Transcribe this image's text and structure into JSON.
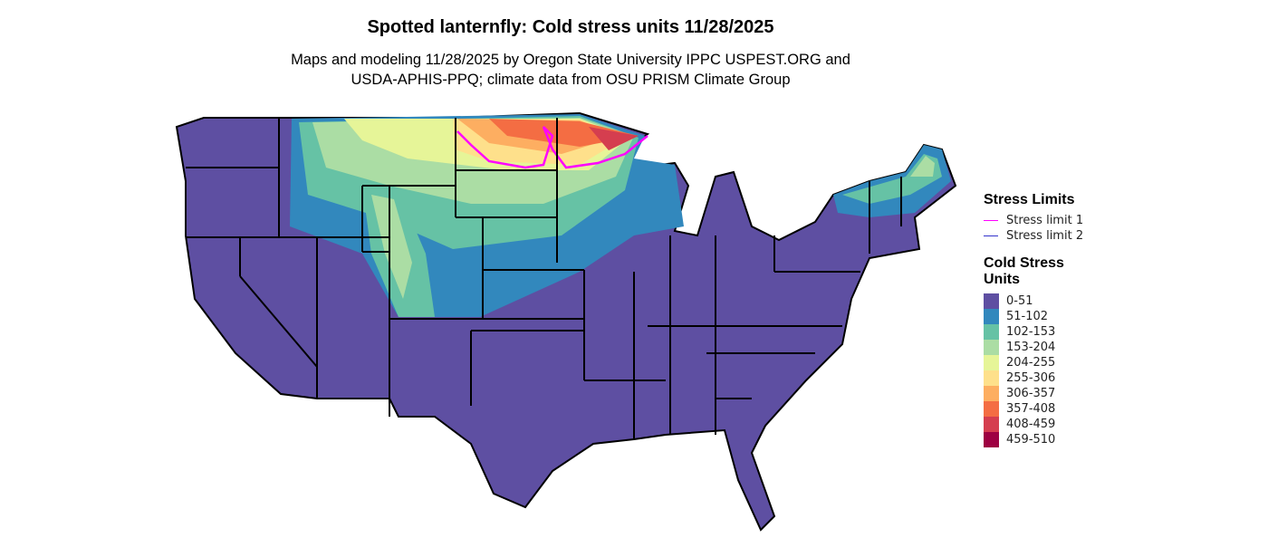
{
  "title": "Spotted lanternfly: Cold stress units 11/28/2025",
  "subtitle_line1": "Maps and modeling 11/28/2025 by Oregon State University IPPC USPEST.ORG and",
  "subtitle_line2": "USDA-APHIS-PPQ; climate data from OSU PRISM Climate Group",
  "legend": {
    "stress_title": "Stress Limits",
    "stress_items": [
      {
        "label": "Stress limit 1",
        "color": "#FF00FF"
      },
      {
        "label": "Stress limit 2",
        "color": "#3333CC"
      }
    ],
    "units_title": "Cold Stress Units",
    "categories": [
      {
        "label": "0-51",
        "color": "#5E4FA2"
      },
      {
        "label": "51-102",
        "color": "#3288BD"
      },
      {
        "label": "102-153",
        "color": "#66C2A5"
      },
      {
        "label": "153-204",
        "color": "#ABDDA4"
      },
      {
        "label": "204-255",
        "color": "#E6F598"
      },
      {
        "label": "255-306",
        "color": "#FEE08B"
      },
      {
        "label": "306-357",
        "color": "#FDAE61"
      },
      {
        "label": "357-408",
        "color": "#F46D43"
      },
      {
        "label": "408-459",
        "color": "#D53E4F"
      },
      {
        "label": "459-510",
        "color": "#9E0142"
      }
    ]
  }
}
